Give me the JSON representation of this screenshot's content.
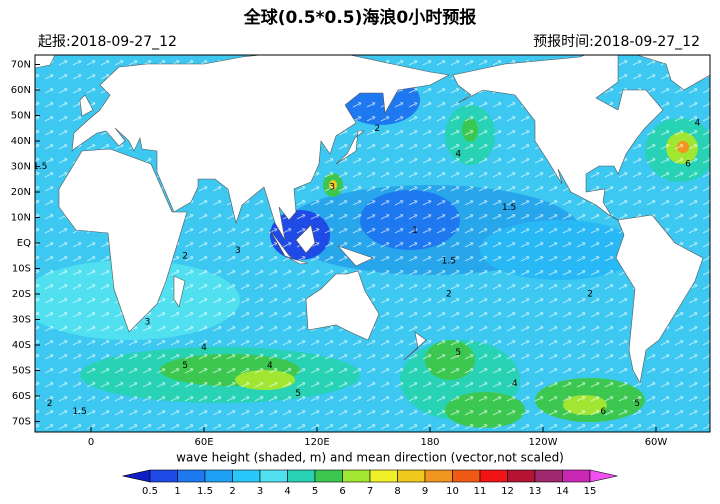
{
  "title": "全球(0.5*0.5)海浪0小时预报",
  "start_label": "起报:2018-09-27_12",
  "valid_label": "预报时间:2018-09-27_12",
  "lat_ticks": [
    {
      "value": 70,
      "label": "70N"
    },
    {
      "value": 60,
      "label": "60N"
    },
    {
      "value": 50,
      "label": "50N"
    },
    {
      "value": 40,
      "label": "40N"
    },
    {
      "value": 30,
      "label": "30N"
    },
    {
      "value": 20,
      "label": "20N"
    },
    {
      "value": 10,
      "label": "10N"
    },
    {
      "value": 0,
      "label": "EQ"
    },
    {
      "value": -10,
      "label": "10S"
    },
    {
      "value": -20,
      "label": "20S"
    },
    {
      "value": -30,
      "label": "30S"
    },
    {
      "value": -40,
      "label": "40S"
    },
    {
      "value": -50,
      "label": "50S"
    },
    {
      "value": -60,
      "label": "60S"
    },
    {
      "value": -70,
      "label": "70S"
    }
  ],
  "lon_ticks": [
    0,
    {
      "value": 60,
      "label": "60E"
    },
    {
      "value": 120,
      "label": "120E"
    },
    {
      "value": 180,
      "label": "180"
    },
    {
      "value": 240,
      "label": "120W"
    },
    {
      "value": 300,
      "label": "60W"
    }
  ],
  "contour_labels": [
    {
      "label": "1.5",
      "lon": -27,
      "lat": 30
    },
    {
      "label": "2",
      "lon": 50,
      "lat": -5
    },
    {
      "label": "3",
      "lon": 78,
      "lat": -3
    },
    {
      "label": "3",
      "lon": 128,
      "lat": 22
    },
    {
      "label": "1",
      "lon": 172,
      "lat": 5
    },
    {
      "label": "1.5",
      "lon": 190,
      "lat": -7
    },
    {
      "label": "1.5",
      "lon": 222,
      "lat": 14
    },
    {
      "label": "2",
      "lon": 190,
      "lat": -20
    },
    {
      "label": "2",
      "lon": 265,
      "lat": -20
    },
    {
      "label": "3",
      "lon": 30,
      "lat": -31
    },
    {
      "label": "4",
      "lon": 60,
      "lat": -41
    },
    {
      "label": "5",
      "lon": 50,
      "lat": -48
    },
    {
      "label": "4",
      "lon": 95,
      "lat": -48
    },
    {
      "label": "5",
      "lon": 110,
      "lat": -59
    },
    {
      "label": "5",
      "lon": 195,
      "lat": -43
    },
    {
      "label": "4",
      "lon": 225,
      "lat": -55
    },
    {
      "label": "6",
      "lon": 272,
      "lat": -66
    },
    {
      "label": "5",
      "lon": 290,
      "lat": -63
    },
    {
      "label": "2",
      "lon": 152,
      "lat": 45
    },
    {
      "label": "4",
      "lon": 195,
      "lat": 35
    },
    {
      "label": "6",
      "lon": 317,
      "lat": 31
    },
    {
      "label": "4",
      "lon": 322,
      "lat": 47
    },
    {
      "label": "2",
      "lon": -22,
      "lat": -63
    },
    {
      "label": "1.5",
      "lon": -6,
      "lat": -66
    }
  ],
  "colorbar_label": "wave height (shaded, m) and mean direction (vector,not scaled)",
  "colorbar_levels": [
    0.5,
    1,
    1.5,
    2,
    3,
    4,
    5,
    6,
    7,
    8,
    9,
    10,
    11,
    12,
    13,
    14,
    15
  ],
  "colorbar_colors": [
    "#1020c8",
    "#1e4be6",
    "#1e78f0",
    "#1ea0f5",
    "#28c8fa",
    "#50e0f0",
    "#28d2b4",
    "#3cc850",
    "#a0e632",
    "#f0f028",
    "#f0c81e",
    "#f0961e",
    "#f05a14",
    "#f01414",
    "#b41432",
    "#a0286e",
    "#c828b4",
    "#f050f0"
  ]
}
